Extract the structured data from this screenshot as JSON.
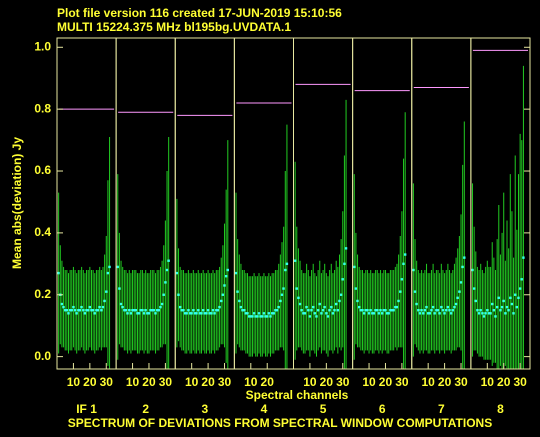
{
  "chart_data": {
    "type": "errorbar-panels",
    "title": "Plot file version 116  created 17-JUN-2019 15:10:56",
    "subtitle": "MULTI 15224.375 MHz  bl195bg.UVDATA.1",
    "ylabel": "Mean abs(deviation) Jy",
    "xlabel": "Spectral channels",
    "caption": "SPECTRUM OF DEVIATIONS FROM SPECTRAL WINDOW COMPUTATIONS",
    "ylim": [
      -0.04,
      1.03
    ],
    "yticks": [
      {
        "value": 0,
        "label": "0.0"
      },
      {
        "value": 0.2,
        "label": "0.2"
      },
      {
        "value": 0.4,
        "label": "0.4"
      },
      {
        "value": 0.6,
        "label": "0.6"
      },
      {
        "value": 0.8,
        "label": "0.8"
      },
      {
        "value": 1,
        "label": "1.0"
      }
    ],
    "xlim": [
      0,
      36
    ],
    "point_color": "#33ffee",
    "error_color": "#22cc22",
    "level_color": "#ff99ff",
    "axis_color": "#e8e8a0",
    "channels": [
      1,
      2,
      3,
      4,
      5,
      6,
      7,
      8,
      9,
      10,
      11,
      12,
      13,
      14,
      15,
      16,
      17,
      18,
      19,
      20,
      21,
      22,
      23,
      24,
      25,
      26,
      27,
      28,
      29,
      30,
      31,
      32
    ],
    "panels": [
      {
        "name": "IF 1",
        "level": 0.8,
        "xticks": [
          10,
          20,
          30
        ],
        "values": [
          0.27,
          0.2,
          0.17,
          0.16,
          0.15,
          0.15,
          0.14,
          0.15,
          0.15,
          0.16,
          0.15,
          0.14,
          0.15,
          0.15,
          0.16,
          0.15,
          0.14,
          0.15,
          0.15,
          0.16,
          0.15,
          0.15,
          0.14,
          0.15,
          0.15,
          0.16,
          0.15,
          0.16,
          0.18,
          0.21,
          0.27,
          0.29
        ],
        "errors": [
          0.26,
          0.16,
          0.14,
          0.13,
          0.13,
          0.13,
          0.13,
          0.13,
          0.13,
          0.13,
          0.13,
          0.13,
          0.13,
          0.13,
          0.13,
          0.13,
          0.13,
          0.13,
          0.13,
          0.13,
          0.13,
          0.13,
          0.13,
          0.13,
          0.13,
          0.13,
          0.13,
          0.13,
          0.15,
          0.18,
          0.3,
          0.42
        ]
      },
      {
        "name": "2",
        "level": 0.79,
        "xticks": [
          10,
          20,
          30
        ],
        "values": [
          0.29,
          0.22,
          0.17,
          0.16,
          0.15,
          0.15,
          0.14,
          0.15,
          0.14,
          0.15,
          0.15,
          0.15,
          0.14,
          0.14,
          0.15,
          0.15,
          0.14,
          0.15,
          0.14,
          0.14,
          0.15,
          0.15,
          0.15,
          0.14,
          0.15,
          0.15,
          0.16,
          0.17,
          0.2,
          0.24,
          0.28,
          0.31
        ],
        "errors": [
          0.3,
          0.18,
          0.14,
          0.13,
          0.13,
          0.13,
          0.13,
          0.13,
          0.13,
          0.13,
          0.13,
          0.13,
          0.13,
          0.13,
          0.13,
          0.13,
          0.13,
          0.13,
          0.13,
          0.13,
          0.13,
          0.13,
          0.13,
          0.13,
          0.13,
          0.13,
          0.13,
          0.14,
          0.16,
          0.2,
          0.32,
          0.4
        ]
      },
      {
        "name": "3",
        "level": 0.78,
        "xticks": [
          10,
          20,
          30
        ],
        "values": [
          0.27,
          0.2,
          0.16,
          0.15,
          0.15,
          0.14,
          0.14,
          0.15,
          0.14,
          0.14,
          0.15,
          0.14,
          0.14,
          0.15,
          0.14,
          0.14,
          0.15,
          0.14,
          0.14,
          0.15,
          0.14,
          0.14,
          0.15,
          0.14,
          0.15,
          0.15,
          0.16,
          0.18,
          0.2,
          0.23,
          0.26,
          0.28
        ],
        "errors": [
          0.24,
          0.15,
          0.13,
          0.13,
          0.13,
          0.13,
          0.13,
          0.13,
          0.13,
          0.13,
          0.13,
          0.13,
          0.13,
          0.13,
          0.13,
          0.13,
          0.13,
          0.13,
          0.13,
          0.13,
          0.13,
          0.13,
          0.13,
          0.13,
          0.13,
          0.13,
          0.13,
          0.14,
          0.16,
          0.2,
          0.28,
          0.42
        ]
      },
      {
        "name": "4",
        "level": 0.82,
        "xticks": [
          10,
          20
        ],
        "values": [
          0.27,
          0.21,
          0.18,
          0.16,
          0.15,
          0.15,
          0.14,
          0.14,
          0.13,
          0.13,
          0.13,
          0.14,
          0.13,
          0.13,
          0.14,
          0.13,
          0.13,
          0.14,
          0.13,
          0.13,
          0.14,
          0.13,
          0.14,
          0.14,
          0.15,
          0.15,
          0.16,
          0.18,
          0.2,
          0.22,
          0.28,
          0.3
        ],
        "errors": [
          0.26,
          0.17,
          0.15,
          0.14,
          0.13,
          0.13,
          0.13,
          0.13,
          0.13,
          0.13,
          0.13,
          0.13,
          0.13,
          0.13,
          0.13,
          0.13,
          0.13,
          0.13,
          0.13,
          0.13,
          0.13,
          0.13,
          0.13,
          0.13,
          0.13,
          0.13,
          0.14,
          0.15,
          0.17,
          0.2,
          0.32,
          0.45
        ]
      },
      {
        "name": "5",
        "level": 0.88,
        "xticks": [
          10,
          20,
          30
        ],
        "values": [
          0.31,
          0.22,
          0.19,
          0.17,
          0.15,
          0.14,
          0.14,
          0.16,
          0.15,
          0.13,
          0.15,
          0.16,
          0.14,
          0.13,
          0.15,
          0.17,
          0.14,
          0.15,
          0.16,
          0.14,
          0.13,
          0.15,
          0.16,
          0.14,
          0.15,
          0.17,
          0.15,
          0.18,
          0.2,
          0.25,
          0.3,
          0.35
        ],
        "errors": [
          0.32,
          0.2,
          0.16,
          0.14,
          0.13,
          0.13,
          0.13,
          0.14,
          0.13,
          0.13,
          0.13,
          0.14,
          0.13,
          0.13,
          0.13,
          0.14,
          0.13,
          0.13,
          0.14,
          0.13,
          0.13,
          0.13,
          0.14,
          0.13,
          0.13,
          0.14,
          0.14,
          0.15,
          0.18,
          0.22,
          0.35,
          0.48
        ]
      },
      {
        "name": "6",
        "level": 0.86,
        "xticks": [
          10,
          20,
          30
        ],
        "values": [
          0.29,
          0.22,
          0.18,
          0.16,
          0.15,
          0.15,
          0.14,
          0.15,
          0.15,
          0.14,
          0.15,
          0.14,
          0.14,
          0.15,
          0.15,
          0.14,
          0.15,
          0.14,
          0.15,
          0.15,
          0.14,
          0.14,
          0.15,
          0.15,
          0.15,
          0.16,
          0.16,
          0.18,
          0.21,
          0.25,
          0.3,
          0.33
        ],
        "errors": [
          0.3,
          0.18,
          0.15,
          0.13,
          0.13,
          0.13,
          0.13,
          0.13,
          0.13,
          0.13,
          0.13,
          0.13,
          0.13,
          0.13,
          0.13,
          0.13,
          0.13,
          0.13,
          0.13,
          0.13,
          0.13,
          0.13,
          0.13,
          0.13,
          0.13,
          0.13,
          0.14,
          0.15,
          0.18,
          0.22,
          0.34,
          0.46
        ]
      },
      {
        "name": "7",
        "level": 0.87,
        "xticks": [
          10,
          20,
          30
        ],
        "values": [
          0.28,
          0.21,
          0.17,
          0.15,
          0.14,
          0.15,
          0.14,
          0.15,
          0.16,
          0.14,
          0.14,
          0.15,
          0.16,
          0.14,
          0.15,
          0.15,
          0.14,
          0.16,
          0.15,
          0.14,
          0.15,
          0.16,
          0.15,
          0.14,
          0.15,
          0.16,
          0.17,
          0.19,
          0.21,
          0.24,
          0.29,
          0.32
        ],
        "errors": [
          0.28,
          0.17,
          0.14,
          0.13,
          0.13,
          0.13,
          0.13,
          0.13,
          0.14,
          0.13,
          0.13,
          0.13,
          0.14,
          0.13,
          0.13,
          0.13,
          0.13,
          0.14,
          0.13,
          0.13,
          0.13,
          0.14,
          0.13,
          0.13,
          0.13,
          0.14,
          0.15,
          0.16,
          0.18,
          0.22,
          0.33,
          0.44
        ]
      },
      {
        "name": "8",
        "level": 0.99,
        "xticks": [
          10,
          20,
          30
        ],
        "values": [
          0.28,
          0.22,
          0.18,
          0.15,
          0.14,
          0.15,
          0.14,
          0.13,
          0.14,
          0.15,
          0.14,
          0.14,
          0.17,
          0.15,
          0.13,
          0.16,
          0.19,
          0.15,
          0.16,
          0.18,
          0.14,
          0.16,
          0.15,
          0.19,
          0.17,
          0.14,
          0.2,
          0.16,
          0.19,
          0.22,
          0.25,
          0.32
        ],
        "errors": [
          0.28,
          0.2,
          0.16,
          0.14,
          0.14,
          0.15,
          0.14,
          0.14,
          0.15,
          0.16,
          0.15,
          0.15,
          0.2,
          0.17,
          0.15,
          0.22,
          0.3,
          0.18,
          0.24,
          0.35,
          0.17,
          0.28,
          0.2,
          0.4,
          0.3,
          0.18,
          0.45,
          0.25,
          0.4,
          0.5,
          0.45,
          0.62
        ]
      }
    ]
  }
}
